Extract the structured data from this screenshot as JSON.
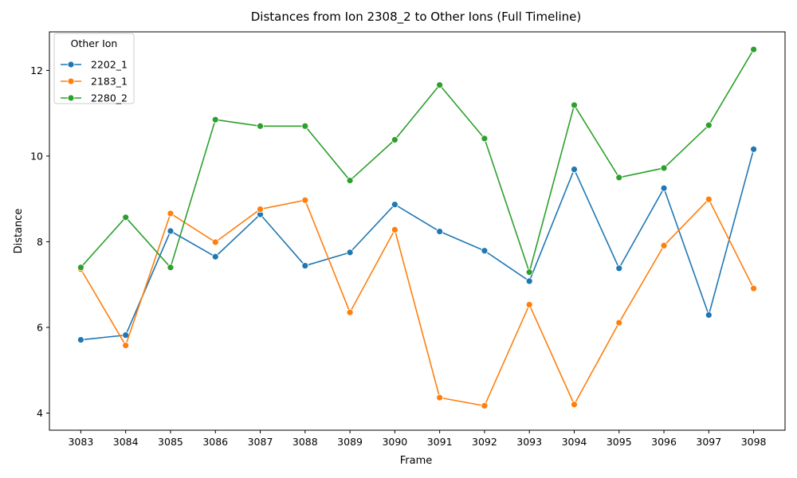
{
  "chart_data": {
    "type": "line",
    "title": "Distances from Ion 2308_2 to Other Ions (Full Timeline)",
    "xlabel": "Frame",
    "ylabel": "Distance",
    "categories": [
      "3083",
      "3084",
      "3085",
      "3086",
      "3087",
      "3088",
      "3089",
      "3090",
      "3091",
      "3092",
      "3093",
      "3094",
      "3095",
      "3096",
      "3097",
      "3098"
    ],
    "ylim": [
      3.6,
      12.9
    ],
    "yticks": [
      4,
      6,
      8,
      10,
      12
    ],
    "grid": false,
    "legend": {
      "title": "Other Ion",
      "placement": "top-left"
    },
    "series": [
      {
        "name": "2202_1",
        "color": "#1f77b4",
        "values": [
          5.71,
          5.82,
          8.25,
          7.65,
          8.64,
          7.44,
          7.75,
          8.87,
          8.24,
          7.79,
          7.08,
          9.69,
          7.38,
          9.25,
          6.29,
          10.16
        ]
      },
      {
        "name": "2183_1",
        "color": "#ff7f0e",
        "values": [
          7.36,
          5.58,
          8.66,
          7.99,
          8.76,
          8.97,
          6.35,
          8.28,
          4.36,
          4.17,
          6.53,
          4.2,
          6.11,
          7.91,
          8.99,
          6.91
        ]
      },
      {
        "name": "2280_2",
        "color": "#2ca02c",
        "values": [
          7.4,
          8.57,
          7.4,
          10.85,
          10.7,
          10.7,
          9.43,
          10.38,
          11.66,
          10.41,
          7.29,
          11.19,
          9.5,
          9.72,
          10.72,
          12.49
        ]
      }
    ]
  }
}
